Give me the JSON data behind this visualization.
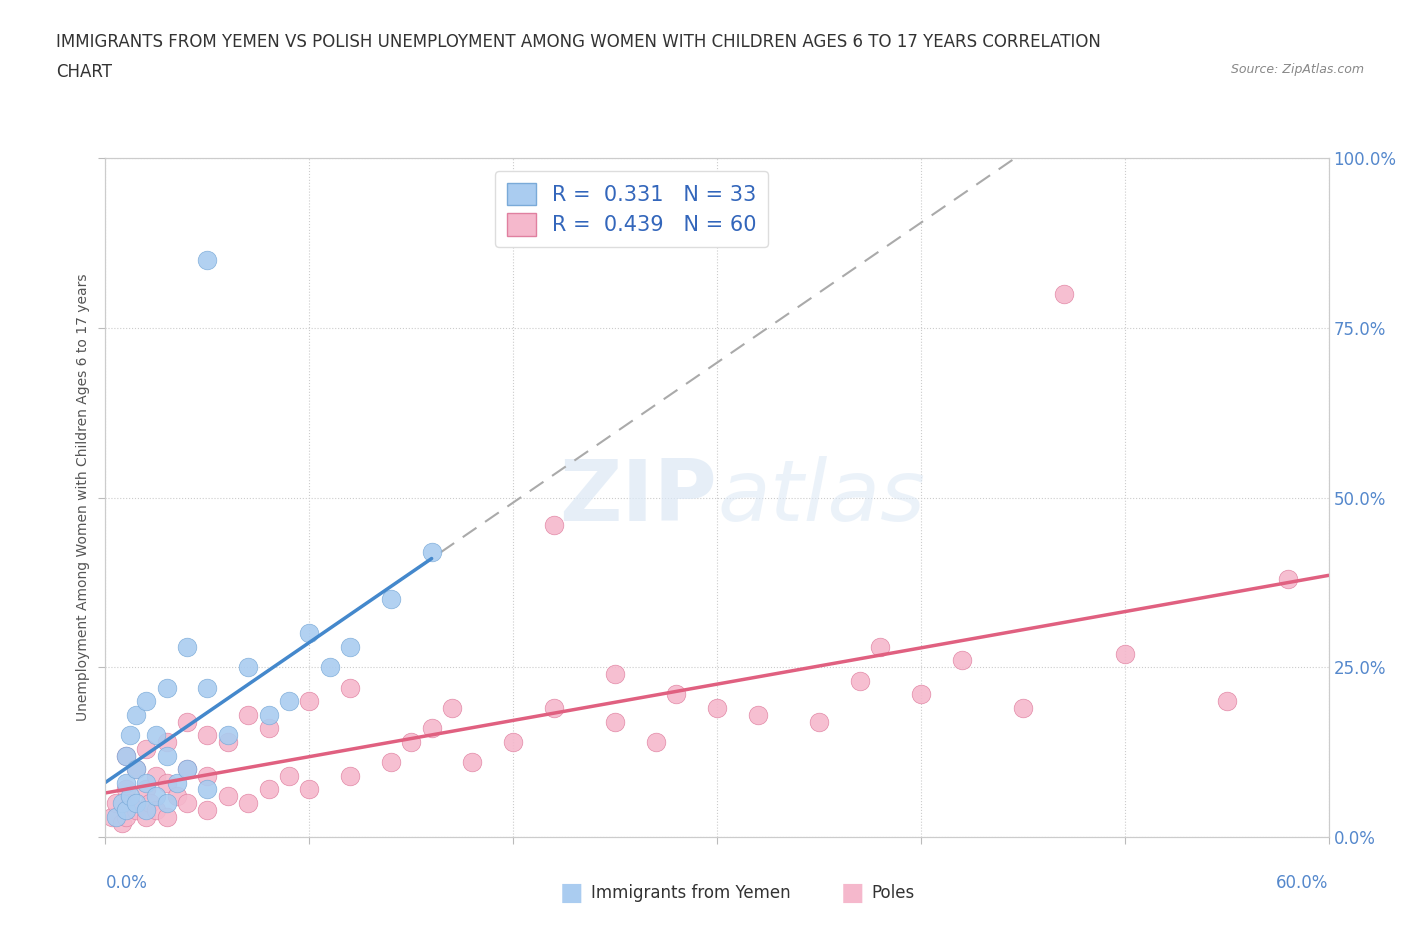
{
  "title_line1": "IMMIGRANTS FROM YEMEN VS POLISH UNEMPLOYMENT AMONG WOMEN WITH CHILDREN AGES 6 TO 17 YEARS CORRELATION",
  "title_line2": "CHART",
  "source": "Source: ZipAtlas.com",
  "ylabel": "Unemployment Among Women with Children Ages 6 to 17 years",
  "xlim": [
    0.0,
    0.6
  ],
  "ylim": [
    0.0,
    1.0
  ],
  "xticks": [
    0.0,
    0.1,
    0.2,
    0.3,
    0.4,
    0.5,
    0.6
  ],
  "yticks": [
    0.0,
    0.25,
    0.5,
    0.75,
    1.0
  ],
  "yticklabels": [
    "0.0%",
    "25.0%",
    "50.0%",
    "75.0%",
    "100.0%"
  ],
  "legend_r1": "R =  0.331   N = 33",
  "legend_r2": "R =  0.439   N = 60",
  "legend_label1": "Immigrants from Yemen",
  "legend_label2": "Poles",
  "blue_color": "#aaccf0",
  "blue_edge": "#7aaad8",
  "pink_color": "#f5b8cc",
  "pink_edge": "#e080a0",
  "blue_line_color": "#4488cc",
  "pink_line_color": "#e06080",
  "gray_dash_color": "#aaaaaa",
  "yemen_x": [
    0.005,
    0.008,
    0.01,
    0.01,
    0.01,
    0.012,
    0.012,
    0.015,
    0.015,
    0.015,
    0.02,
    0.02,
    0.02,
    0.025,
    0.025,
    0.03,
    0.03,
    0.03,
    0.035,
    0.04,
    0.04,
    0.05,
    0.05,
    0.06,
    0.07,
    0.08,
    0.09,
    0.1,
    0.11,
    0.12,
    0.14,
    0.16,
    0.05
  ],
  "yemen_y": [
    0.03,
    0.05,
    0.04,
    0.08,
    0.12,
    0.06,
    0.15,
    0.05,
    0.1,
    0.18,
    0.04,
    0.08,
    0.2,
    0.06,
    0.15,
    0.05,
    0.12,
    0.22,
    0.08,
    0.1,
    0.28,
    0.07,
    0.22,
    0.15,
    0.25,
    0.18,
    0.2,
    0.3,
    0.25,
    0.28,
    0.35,
    0.42,
    0.85
  ],
  "poles_x": [
    0.003,
    0.005,
    0.008,
    0.01,
    0.01,
    0.01,
    0.012,
    0.015,
    0.015,
    0.02,
    0.02,
    0.02,
    0.022,
    0.025,
    0.025,
    0.03,
    0.03,
    0.03,
    0.035,
    0.04,
    0.04,
    0.04,
    0.05,
    0.05,
    0.05,
    0.06,
    0.06,
    0.07,
    0.07,
    0.08,
    0.08,
    0.09,
    0.1,
    0.1,
    0.12,
    0.12,
    0.14,
    0.15,
    0.16,
    0.17,
    0.18,
    0.2,
    0.22,
    0.22,
    0.25,
    0.25,
    0.27,
    0.28,
    0.3,
    0.32,
    0.35,
    0.37,
    0.38,
    0.4,
    0.42,
    0.45,
    0.47,
    0.5,
    0.55,
    0.58
  ],
  "poles_y": [
    0.03,
    0.05,
    0.02,
    0.03,
    0.07,
    0.12,
    0.05,
    0.04,
    0.1,
    0.03,
    0.07,
    0.13,
    0.05,
    0.04,
    0.09,
    0.03,
    0.08,
    0.14,
    0.06,
    0.05,
    0.1,
    0.17,
    0.04,
    0.09,
    0.15,
    0.06,
    0.14,
    0.05,
    0.18,
    0.07,
    0.16,
    0.09,
    0.07,
    0.2,
    0.09,
    0.22,
    0.11,
    0.14,
    0.16,
    0.19,
    0.11,
    0.14,
    0.19,
    0.46,
    0.17,
    0.24,
    0.14,
    0.21,
    0.19,
    0.18,
    0.17,
    0.23,
    0.28,
    0.21,
    0.26,
    0.19,
    0.8,
    0.27,
    0.2,
    0.38
  ]
}
